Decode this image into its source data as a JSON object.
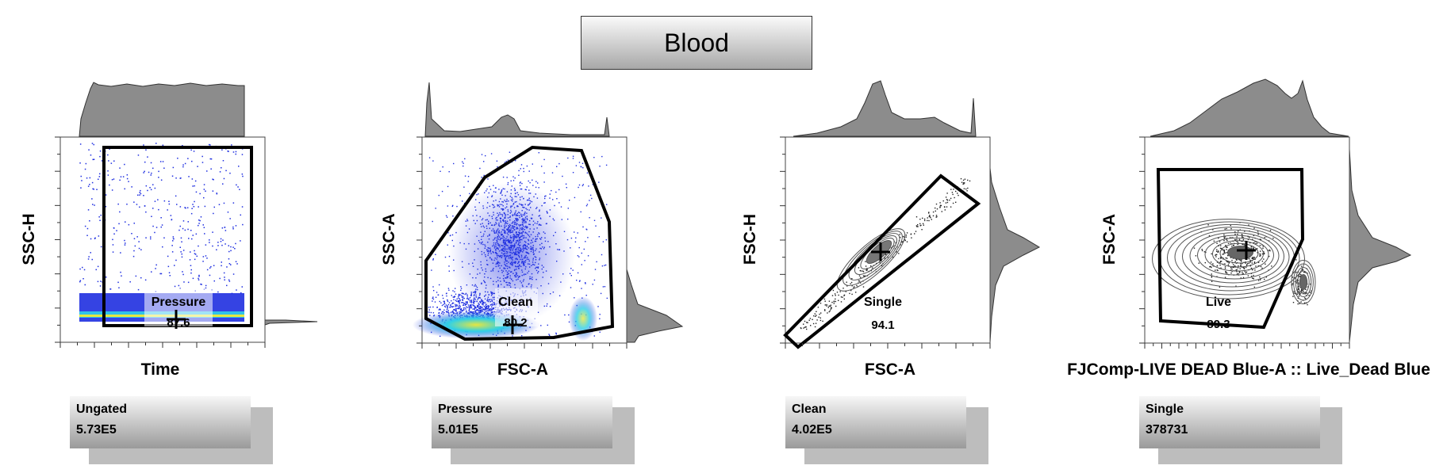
{
  "layout_title": "Blood",
  "panels": [
    {
      "id": "p1",
      "xlabel": "Time",
      "ylabel": "SSC-H",
      "gate_name": "Pressure",
      "gate_value": "87.6",
      "stat_name": "Ungated",
      "stat_value": "5.73E5"
    },
    {
      "id": "p2",
      "xlabel": "FSC-A",
      "ylabel": "SSC-A",
      "gate_name": "Clean",
      "gate_value": "80.2",
      "stat_name": "Pressure",
      "stat_value": "5.01E5"
    },
    {
      "id": "p3",
      "xlabel": "FSC-A",
      "ylabel": "FSC-H",
      "gate_name": "Single",
      "gate_value": "94.1",
      "stat_name": "Clean",
      "stat_value": "4.02E5"
    },
    {
      "id": "p4",
      "xlabel": "FJComp-LIVE DEAD Blue-A :: Live_Dead Blue",
      "ylabel": "FSC-A",
      "gate_name": "Live",
      "gate_value": "89.3",
      "stat_name": "Single",
      "stat_value": "378731"
    }
  ],
  "colors": {
    "density_low": "#1f2fe0",
    "density_mid": "#2fd0e8",
    "density_high": "#e6e640",
    "histogram": "#8c8c8c",
    "gate": "#000000"
  },
  "chart_data": [
    {
      "type": "scatter",
      "title": "",
      "xlabel": "Time",
      "ylabel": "SSC-H",
      "gate": "Pressure",
      "gate_percent": 87.6,
      "parent_count": "5.73E5"
    },
    {
      "type": "scatter",
      "title": "",
      "xlabel": "FSC-A",
      "ylabel": "SSC-A",
      "gate": "Clean",
      "gate_percent": 80.2,
      "parent_count": "5.01E5"
    },
    {
      "type": "scatter",
      "title": "",
      "xlabel": "FSC-A",
      "ylabel": "FSC-H",
      "gate": "Single",
      "gate_percent": 94.1,
      "parent_count": "4.02E5"
    },
    {
      "type": "scatter",
      "title": "",
      "xlabel": "FJComp-LIVE DEAD Blue-A :: Live_Dead Blue",
      "ylabel": "FSC-A",
      "gate": "Live",
      "gate_percent": 89.3,
      "parent_count": "378731"
    }
  ]
}
